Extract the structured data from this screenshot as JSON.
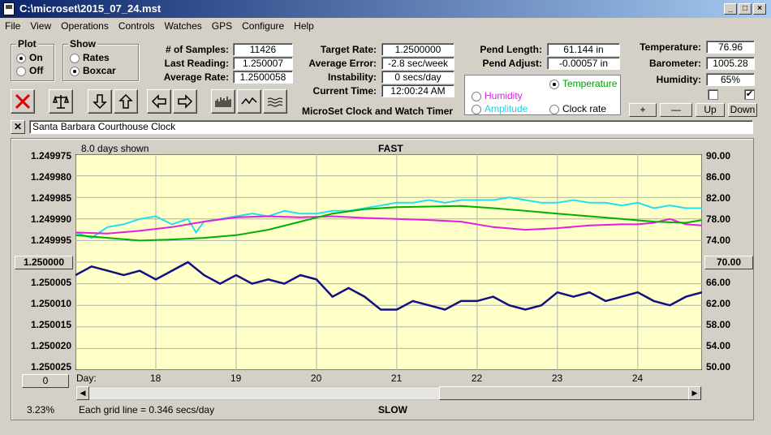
{
  "window": {
    "title": "C:\\microset\\2015_07_24.mst"
  },
  "menu": [
    "File",
    "View",
    "Operations",
    "Controls",
    "Watches",
    "GPS",
    "Configure",
    "Help"
  ],
  "plot_group": {
    "label": "Plot",
    "on": "On",
    "off": "Off",
    "selected": "On"
  },
  "show_group": {
    "label": "Show",
    "rates": "Rates",
    "boxcar": "Boxcar",
    "selected": "Boxcar"
  },
  "stats": {
    "samples_label": "# of Samples:",
    "samples": "11426",
    "last_label": "Last Reading:",
    "last": "1.250007",
    "avg_label": "Average Rate:",
    "avg": "1.2500058"
  },
  "rates": {
    "target_label": "Target Rate:",
    "target": "1.2500000",
    "error_label": "Average Error:",
    "error": "-2.8 sec/week",
    "instab_label": "Instability:",
    "instab": "0 secs/day",
    "time_label": "Current Time:",
    "time": "12:00:24 AM"
  },
  "app_name": "MicroSet Clock and Watch Timer",
  "pend": {
    "length_label": "Pend Length:",
    "length": "61.144 in",
    "adjust_label": "Pend Adjust:",
    "adjust": "-0.00057 in"
  },
  "sensor_select": {
    "temperature": "Temperature",
    "humidity": "Humidity",
    "amplitude": "Amplitude",
    "clock_rate": "Clock rate",
    "selected": "Temperature",
    "colors": {
      "temperature": "#00a000",
      "humidity": "#e020e0",
      "amplitude": "#20d0e0",
      "clock_rate": "#000000"
    }
  },
  "env": {
    "temp_label": "Temperature:",
    "temp": "76.96",
    "baro_label": "Barometer:",
    "baro": "1005.28",
    "hum_label": "Humidity:",
    "hum": "65%",
    "check1": false,
    "check2": true
  },
  "adj_buttons": {
    "plus": "+",
    "minus": "—",
    "up": "Up",
    "down": "Down"
  },
  "clock_name": "Santa Barbara Courthouse Clock",
  "graph": {
    "days_shown": "8.0 days shown",
    "top_label": "FAST",
    "bottom_label": "SLOW",
    "center_left": "1.250000",
    "center_right": "70.00",
    "zero_button": "0",
    "percent": "3.23%",
    "grid_note": "Each grid line = 0.346 secs/day",
    "day_label": "Day:"
  },
  "chart_data": {
    "type": "line",
    "y_left_ticks": [
      "1.249975",
      "1.249980",
      "1.249985",
      "1.249990",
      "1.249995",
      "1.250000",
      "1.250005",
      "1.250010",
      "1.250015",
      "1.250020",
      "1.250025"
    ],
    "y_right_ticks": [
      "90.00",
      "86.00",
      "82.00",
      "78.00",
      "74.00",
      "70.00",
      "66.00",
      "62.00",
      "58.00",
      "54.00",
      "50.00"
    ],
    "x_ticks": [
      "18",
      "19",
      "20",
      "21",
      "22",
      "23",
      "24"
    ],
    "xlim": [
      17.0,
      24.8
    ],
    "ylim_left": [
      1.249975,
      1.250025
    ],
    "ylim_right": [
      50,
      90
    ],
    "grid": true,
    "background": "#ffffc8",
    "series": [
      {
        "color": "#20e0f0",
        "axis": "right",
        "x": [
          17.0,
          17.2,
          17.4,
          17.6,
          17.8,
          18.0,
          18.2,
          18.4,
          18.5,
          18.6,
          18.8,
          19.0,
          19.2,
          19.4,
          19.6,
          19.8,
          20.0,
          20.2,
          20.4,
          20.6,
          20.8,
          21.0,
          21.2,
          21.4,
          21.6,
          21.8,
          22.0,
          22.2,
          22.4,
          22.6,
          22.8,
          23.0,
          23.2,
          23.4,
          23.6,
          23.8,
          24.0,
          24.2,
          24.4,
          24.6,
          24.8
        ],
        "y": [
          75.5,
          74.5,
          76.5,
          77.0,
          78.0,
          78.5,
          77.0,
          78.0,
          75.5,
          77.5,
          78.0,
          78.5,
          79.0,
          78.5,
          79.5,
          79.0,
          79.0,
          79.5,
          79.5,
          80.0,
          80.5,
          81.0,
          81.0,
          81.5,
          81.0,
          81.5,
          81.5,
          81.5,
          82.0,
          81.5,
          81.0,
          81.0,
          81.5,
          81.0,
          81.0,
          80.5,
          81.0,
          80.0,
          80.5,
          80.0,
          80.0
        ]
      },
      {
        "color": "#e020e0",
        "axis": "right",
        "x": [
          17.0,
          17.4,
          17.8,
          18.2,
          18.6,
          19.0,
          19.4,
          19.8,
          20.2,
          20.6,
          21.0,
          21.4,
          21.8,
          22.2,
          22.6,
          23.0,
          23.4,
          23.8,
          24.0,
          24.2,
          24.4,
          24.6,
          24.8
        ],
        "y": [
          75.5,
          75.3,
          75.8,
          76.5,
          77.5,
          78.3,
          78.5,
          78.3,
          78.5,
          78.2,
          78.0,
          77.8,
          77.5,
          76.5,
          76.0,
          76.3,
          76.8,
          77.0,
          77.0,
          77.3,
          78.0,
          77.0,
          76.8
        ]
      },
      {
        "color": "#00b000",
        "axis": "right",
        "x": [
          17.0,
          17.4,
          17.8,
          18.2,
          18.6,
          19.0,
          19.4,
          19.8,
          20.2,
          20.6,
          21.0,
          21.4,
          21.8,
          22.2,
          22.6,
          23.0,
          23.4,
          23.8,
          24.2,
          24.6,
          24.8
        ],
        "y": [
          75.0,
          74.5,
          74.0,
          74.2,
          74.5,
          75.0,
          76.0,
          77.5,
          79.0,
          79.8,
          80.2,
          80.3,
          80.4,
          80.0,
          79.5,
          79.0,
          78.5,
          78.0,
          77.5,
          77.3,
          77.8
        ]
      },
      {
        "color": "#101080",
        "axis": "left",
        "x": [
          17.0,
          17.2,
          17.4,
          17.6,
          17.8,
          18.0,
          18.2,
          18.4,
          18.6,
          18.8,
          19.0,
          19.2,
          19.4,
          19.6,
          19.8,
          20.0,
          20.2,
          20.4,
          20.6,
          20.8,
          21.0,
          21.2,
          21.4,
          21.6,
          21.8,
          22.0,
          22.2,
          22.4,
          22.6,
          22.8,
          23.0,
          23.2,
          23.4,
          23.6,
          23.8,
          24.0,
          24.2,
          24.4,
          24.6,
          24.8
        ],
        "y": [
          1.250003,
          1.250001,
          1.250002,
          1.250003,
          1.250002,
          1.250004,
          1.250002,
          1.25,
          1.250003,
          1.250005,
          1.250003,
          1.250005,
          1.250004,
          1.250005,
          1.250003,
          1.250004,
          1.250008,
          1.250006,
          1.250008,
          1.250011,
          1.250011,
          1.250009,
          1.25001,
          1.250011,
          1.250009,
          1.250009,
          1.250008,
          1.25001,
          1.250011,
          1.25001,
          1.250007,
          1.250008,
          1.250007,
          1.250009,
          1.250008,
          1.250007,
          1.250009,
          1.25001,
          1.250008,
          1.250007
        ]
      }
    ]
  }
}
